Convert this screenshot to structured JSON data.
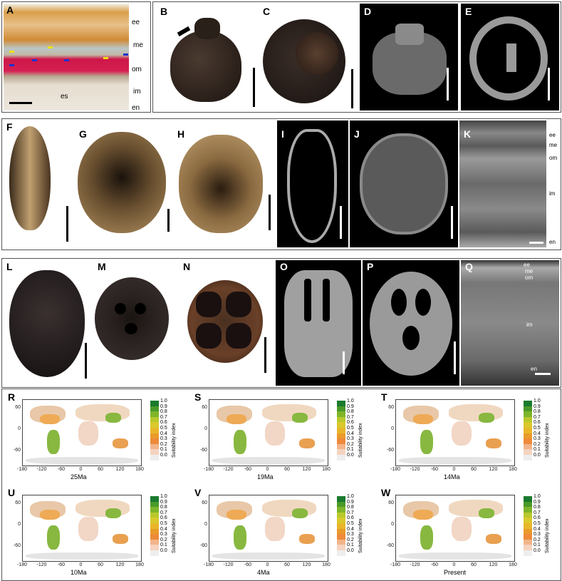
{
  "panel_letters": {
    "A": "A",
    "B": "B",
    "C": "C",
    "D": "D",
    "E": "E",
    "F": "F",
    "G": "G",
    "H": "H",
    "I": "I",
    "J": "J",
    "K": "K",
    "L": "L",
    "M": "M",
    "N": "N",
    "O": "O",
    "P": "P",
    "Q": "Q",
    "R": "R",
    "S": "S",
    "T": "T",
    "U": "U",
    "V": "V",
    "W": "W"
  },
  "panel_a_tags": {
    "ee": "ee",
    "me": "me",
    "om": "om",
    "im": "im",
    "en": "en",
    "es": "es"
  },
  "panel_k_tags": {
    "ee": "ee",
    "me": "me",
    "om": "om",
    "im": "im",
    "en": "en"
  },
  "panel_q_tags": {
    "ee": "ee",
    "me": "me",
    "om": "om",
    "im": "im",
    "en": "en"
  },
  "maps": [
    {
      "letter": "R",
      "age": "25Ma"
    },
    {
      "letter": "S",
      "age": "19Ma"
    },
    {
      "letter": "T",
      "age": "14Ma"
    },
    {
      "letter": "U",
      "age": "10Ma"
    },
    {
      "letter": "V",
      "age": "4Ma"
    },
    {
      "letter": "W",
      "age": "Present"
    }
  ],
  "map_axes": {
    "x_ticks": [
      "-180",
      "-120",
      "-60",
      "0",
      "60",
      "120",
      "180"
    ],
    "y_ticks": [
      "60",
      "0",
      "-60"
    ]
  },
  "colorbar": {
    "title": "Suitability index",
    "ticks": [
      "1.0",
      "0.9",
      "0.8",
      "0.7",
      "0.6",
      "0.5",
      "0.4",
      "0.3",
      "0.2",
      "0.1",
      "0.0"
    ],
    "colors": [
      "#1a7a2e",
      "#4a9a2a",
      "#7eb52a",
      "#b8c92c",
      "#d9c92c",
      "#e8b62a",
      "#ea9a2a",
      "#ee8a3a",
      "#f2b48a",
      "#f5d3bf",
      "#eeeeee"
    ]
  }
}
